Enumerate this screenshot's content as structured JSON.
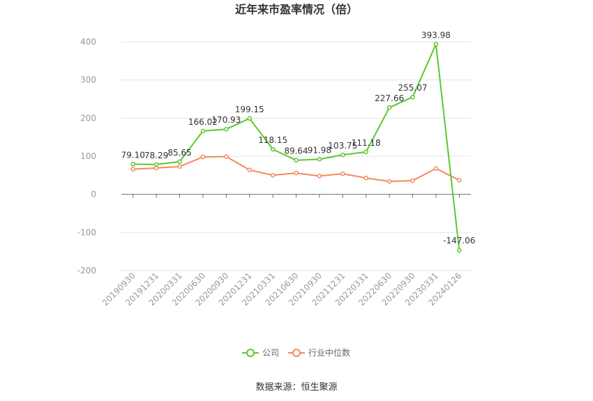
{
  "chart_data": {
    "type": "line",
    "title": "近年来市盈率情况（倍）",
    "categories": [
      "20190930",
      "20191231",
      "20200331",
      "20200630",
      "20200930",
      "20201231",
      "20210331",
      "20210630",
      "20210930",
      "20211231",
      "20220331",
      "20220630",
      "20220930",
      "20230331",
      "20240126"
    ],
    "series": [
      {
        "name": "公司",
        "color": "#5cc72e",
        "values": [
          79.1,
          78.29,
          85.65,
          166.02,
          170.93,
          199.15,
          118.15,
          89.64,
          91.98,
          103.75,
          111.18,
          227.66,
          255.07,
          393.98,
          -147.06
        ],
        "labels": [
          "79.10",
          "78.29",
          "85.65",
          "166.02",
          "170.93",
          "199.15",
          "118.15",
          "89.64",
          "91.98",
          "103.75",
          "111.18",
          "227.66",
          "255.07",
          "393.98",
          "-147.06"
        ]
      },
      {
        "name": "行业中位数",
        "color": "#f28a5b",
        "values": [
          66,
          69,
          73,
          98,
          99,
          64,
          50,
          56,
          48,
          54,
          43,
          34,
          36,
          68,
          37
        ]
      }
    ],
    "yticks": [
      -200,
      -100,
      0,
      100,
      200,
      300,
      400
    ],
    "ylim": [
      -200,
      400
    ],
    "grid": true,
    "legend_position": "bottom"
  },
  "source_text": "数据来源：恒生聚源"
}
